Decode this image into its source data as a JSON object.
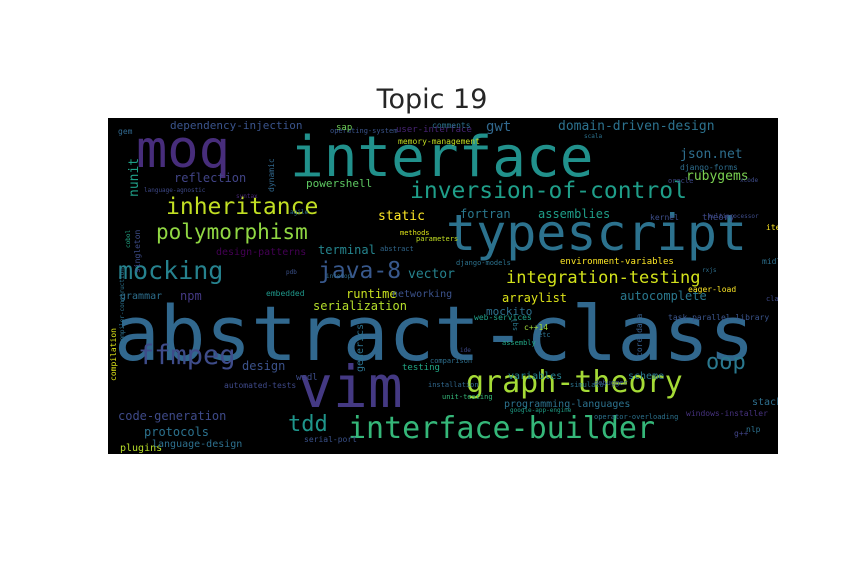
{
  "title": "Topic 19",
  "words": [
    {
      "text": "abstract-class",
      "color": "#31688e"
    },
    {
      "text": "interface",
      "color": "#21918c"
    },
    {
      "text": "typescript",
      "color": "#2c728e"
    },
    {
      "text": "moq",
      "color": "#472d7b"
    },
    {
      "text": "vim",
      "color": "#443983"
    },
    {
      "text": "graph-theory",
      "color": "#a5db36"
    },
    {
      "text": "interface-builder",
      "color": "#35b779"
    },
    {
      "text": "inversion-of-control",
      "color": "#1f9e89"
    },
    {
      "text": "inheritance",
      "color": "#c2df23"
    },
    {
      "text": "polymorphism",
      "color": "#90d743"
    },
    {
      "text": "mocking",
      "color": "#26828e"
    },
    {
      "text": "java-8",
      "color": "#38588c"
    },
    {
      "text": "integration-testing",
      "color": "#d2e21b"
    },
    {
      "text": "ffmpeg",
      "color": "#3e4c8a"
    },
    {
      "text": "oop",
      "color": "#2a788e"
    },
    {
      "text": "tdd",
      "color": "#1f958b"
    },
    {
      "text": "domain-driven-design",
      "color": "#2c728e"
    },
    {
      "text": "json.net",
      "color": "#2e6f8e"
    },
    {
      "text": "dependency-injection",
      "color": "#3a548c"
    },
    {
      "text": "gwt",
      "color": "#31688e"
    },
    {
      "text": "rubygems",
      "color": "#7ad151"
    },
    {
      "text": "reflection",
      "color": "#414487"
    },
    {
      "text": "nunit",
      "color": "#1fa088"
    },
    {
      "text": "powershell",
      "color": "#5ec962"
    },
    {
      "text": "static",
      "color": "#fde725"
    },
    {
      "text": "fortran",
      "color": "#2a788e"
    },
    {
      "text": "assemblies",
      "color": "#1f9e89"
    },
    {
      "text": "terminal",
      "color": "#25858e"
    },
    {
      "text": "vector",
      "color": "#26828e"
    },
    {
      "text": "npm",
      "color": "#443983"
    },
    {
      "text": "runtime",
      "color": "#c8e020"
    },
    {
      "text": "serialization",
      "color": "#b5de2b"
    },
    {
      "text": "networking",
      "color": "#3b528b"
    },
    {
      "text": "arraylist",
      "color": "#dde318"
    },
    {
      "text": "autocomplete",
      "color": "#2a788e"
    },
    {
      "text": "mockito",
      "color": "#2d708e"
    },
    {
      "text": "design-patterns",
      "color": "#440154"
    },
    {
      "text": "environment-variables",
      "color": "#fde725"
    },
    {
      "text": "grammar",
      "color": "#2e6f8e"
    },
    {
      "text": "design",
      "color": "#3b528b"
    },
    {
      "text": "code-generation",
      "color": "#3e4a89"
    },
    {
      "text": "protocols",
      "color": "#2c728e"
    },
    {
      "text": "plugins",
      "color": "#b8de29"
    },
    {
      "text": "language-design",
      "color": "#2d708e"
    },
    {
      "text": "programming-languages",
      "color": "#2c728e"
    },
    {
      "text": "variables",
      "color": "#26818e"
    },
    {
      "text": "scheme",
      "color": "#2a788e"
    },
    {
      "text": "stack",
      "color": "#2e6f8e"
    },
    {
      "text": "testing",
      "color": "#22a785"
    },
    {
      "text": "automated-tests",
      "color": "#3e4989"
    },
    {
      "text": "generics",
      "color": "#2c728e"
    },
    {
      "text": "wsdl",
      "color": "#3e4c8a"
    },
    {
      "text": "serial-port",
      "color": "#3b528b"
    },
    {
      "text": "windows-installer",
      "color": "#46327e"
    },
    {
      "text": "nlp",
      "color": "#2d708e"
    },
    {
      "text": "g++",
      "color": "#414487"
    },
    {
      "text": "c++14",
      "color": "#a0da39"
    },
    {
      "text": "embedded",
      "color": "#1f988b"
    },
    {
      "text": "django-forms",
      "color": "#2e6e8e"
    },
    {
      "text": "kernel",
      "color": "#3d4e8a"
    },
    {
      "text": "theory",
      "color": "#3e4989"
    },
    {
      "text": "user-interface",
      "color": "#482475"
    },
    {
      "text": "operating-system",
      "color": "#3a548c"
    },
    {
      "text": "dynamic",
      "color": "#31688e"
    },
    {
      "text": "midlet",
      "color": "#2d708e"
    },
    {
      "text": "task-parallel-library",
      "color": "#3a548c"
    },
    {
      "text": "compilation",
      "color": "#dde318"
    },
    {
      "text": "class",
      "color": "#3e4a89"
    },
    {
      "text": "singleton",
      "color": "#3e4c8a"
    },
    {
      "text": "language-agnostic",
      "color": "#3e4989"
    },
    {
      "text": "syntax",
      "color": "#482878"
    },
    {
      "text": "comparison",
      "color": "#2e6f8e"
    },
    {
      "text": "installation",
      "color": "#31688e"
    },
    {
      "text": "methods",
      "color": "#dde318"
    },
    {
      "text": "parameters",
      "color": "#c2df23"
    },
    {
      "text": "django-models",
      "color": "#2c728e"
    },
    {
      "text": "iteration",
      "color": "#fde725"
    },
    {
      "text": "cobol",
      "color": "#22a785"
    },
    {
      "text": "compiler-construction",
      "color": "#2c728e"
    },
    {
      "text": "unit-testing",
      "color": "#35b779"
    },
    {
      "text": "google-app-engine",
      "color": "#1fa088"
    },
    {
      "text": "pdb",
      "color": "#3b528b"
    },
    {
      "text": "interop",
      "color": "#2e6e8e"
    },
    {
      "text": "memory-management",
      "color": "#c2df23"
    },
    {
      "text": "comments",
      "color": "#2c728e"
    },
    {
      "text": "abstract",
      "color": "#31688e"
    },
    {
      "text": "ide",
      "color": "#3e4a89"
    },
    {
      "text": "assembly",
      "color": "#22a785"
    },
    {
      "text": "core-data",
      "color": "#355f8d"
    },
    {
      "text": "agile",
      "color": "#2c728e"
    },
    {
      "text": "eager-load",
      "color": "#fde725"
    },
    {
      "text": "web-services",
      "color": "#1fa088"
    },
    {
      "text": "sql",
      "color": "#2a788e"
    },
    {
      "text": "simulator",
      "color": "#2c728e"
    },
    {
      "text": "debugger",
      "color": "#3b528b"
    },
    {
      "text": "multiprocessor",
      "color": "#3e4c8a"
    },
    {
      "text": "oracle",
      "color": "#3e4989"
    },
    {
      "text": "sap",
      "color": "#6ece58"
    },
    {
      "text": "etc",
      "color": "#2c728e"
    },
    {
      "text": "scala",
      "color": "#2c728e"
    },
    {
      "text": "operator-overloading",
      "color": "#2c728e"
    },
    {
      "text": "rxjs",
      "color": "#2e6f8e"
    },
    {
      "text": "xcode",
      "color": "#3e4c8a"
    },
    {
      "text": "gem",
      "color": "#31688e"
    }
  ]
}
